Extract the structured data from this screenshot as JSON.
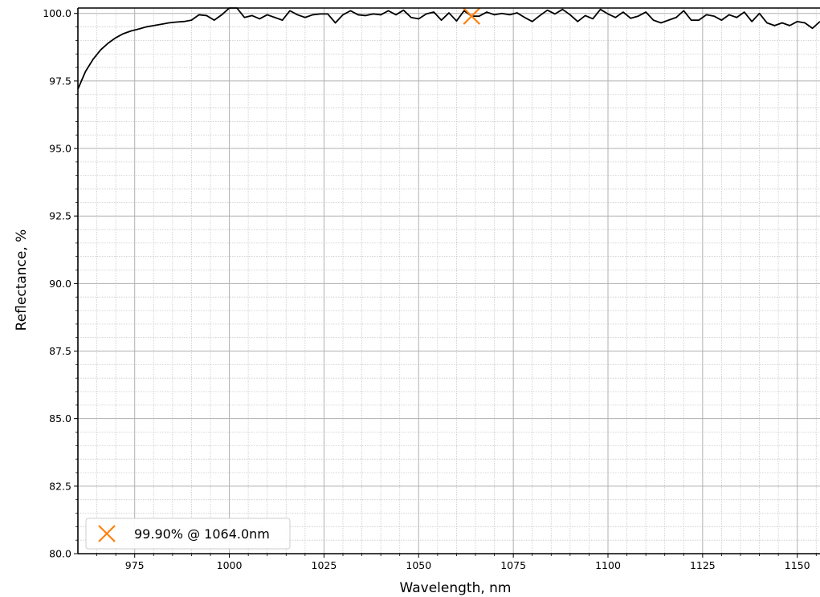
{
  "chart_data": {
    "type": "line",
    "title": "",
    "xlabel": "Wavelength, nm",
    "ylabel": "Reflectance, %",
    "xlim": [
      960,
      1156
    ],
    "ylim": [
      80,
      100.2
    ],
    "grid": true,
    "minor_grid": true,
    "legend_position": "lower-left",
    "x_ticks": [
      975,
      1000,
      1025,
      1050,
      1075,
      1100,
      1125,
      1150
    ],
    "x_tick_labels": [
      "975",
      "1000",
      "1025",
      "1050",
      "1075",
      "1100",
      "1125",
      "1150"
    ],
    "y_ticks": [
      80.0,
      82.5,
      85.0,
      87.5,
      90.0,
      92.5,
      95.0,
      97.5,
      100.0
    ],
    "y_tick_labels": [
      "80.0",
      "82.5",
      "85.0",
      "87.5",
      "90.0",
      "92.5",
      "95.0",
      "97.5",
      "100.0"
    ],
    "series": [
      {
        "color": "#000000",
        "x": [
          960,
          962,
          964,
          966,
          968,
          970,
          972,
          974,
          976,
          978,
          980,
          982,
          984,
          986,
          988,
          990,
          992,
          994,
          996,
          998,
          1000,
          1002,
          1004,
          1006,
          1008,
          1010,
          1012,
          1014,
          1016,
          1018,
          1020,
          1022,
          1024,
          1026,
          1028,
          1030,
          1032,
          1034,
          1036,
          1038,
          1040,
          1042,
          1044,
          1046,
          1048,
          1050,
          1052,
          1054,
          1056,
          1058,
          1060,
          1062,
          1064,
          1066,
          1068,
          1070,
          1072,
          1074,
          1076,
          1078,
          1080,
          1082,
          1084,
          1086,
          1088,
          1090,
          1092,
          1094,
          1096,
          1098,
          1100,
          1102,
          1104,
          1106,
          1108,
          1110,
          1112,
          1114,
          1116,
          1118,
          1120,
          1122,
          1124,
          1126,
          1128,
          1130,
          1132,
          1134,
          1136,
          1138,
          1140,
          1142,
          1144,
          1146,
          1148,
          1150,
          1152,
          1154,
          1156
        ],
        "y": [
          97.2,
          97.85,
          98.3,
          98.65,
          98.9,
          99.1,
          99.25,
          99.35,
          99.42,
          99.5,
          99.55,
          99.6,
          99.65,
          99.68,
          99.7,
          99.75,
          99.95,
          99.92,
          99.75,
          99.95,
          100.2,
          100.2,
          99.85,
          99.92,
          99.8,
          99.95,
          99.85,
          99.75,
          100.1,
          99.95,
          99.85,
          99.95,
          99.98,
          99.98,
          99.65,
          99.95,
          100.1,
          99.95,
          99.92,
          99.98,
          99.95,
          100.1,
          99.95,
          100.12,
          99.85,
          99.8,
          99.98,
          100.05,
          99.75,
          100.02,
          99.72,
          100.1,
          99.9,
          99.9,
          100.05,
          99.95,
          100.0,
          99.95,
          100.02,
          99.85,
          99.7,
          99.92,
          100.12,
          99.98,
          100.15,
          99.95,
          99.7,
          99.92,
          99.8,
          100.15,
          99.98,
          99.85,
          100.05,
          99.82,
          99.9,
          100.05,
          99.75,
          99.65,
          99.75,
          99.85,
          100.1,
          99.75,
          99.75,
          99.95,
          99.9,
          99.75,
          99.95,
          99.85,
          100.05,
          99.7,
          100.0,
          99.65,
          99.55,
          99.65,
          99.55,
          99.7,
          99.65,
          99.45,
          99.7
        ]
      }
    ],
    "marker": {
      "x": 1064.0,
      "y": 99.9,
      "symbol": "x",
      "color": "#ff7f0e",
      "label": "99.90% @ 1064.0nm"
    }
  }
}
